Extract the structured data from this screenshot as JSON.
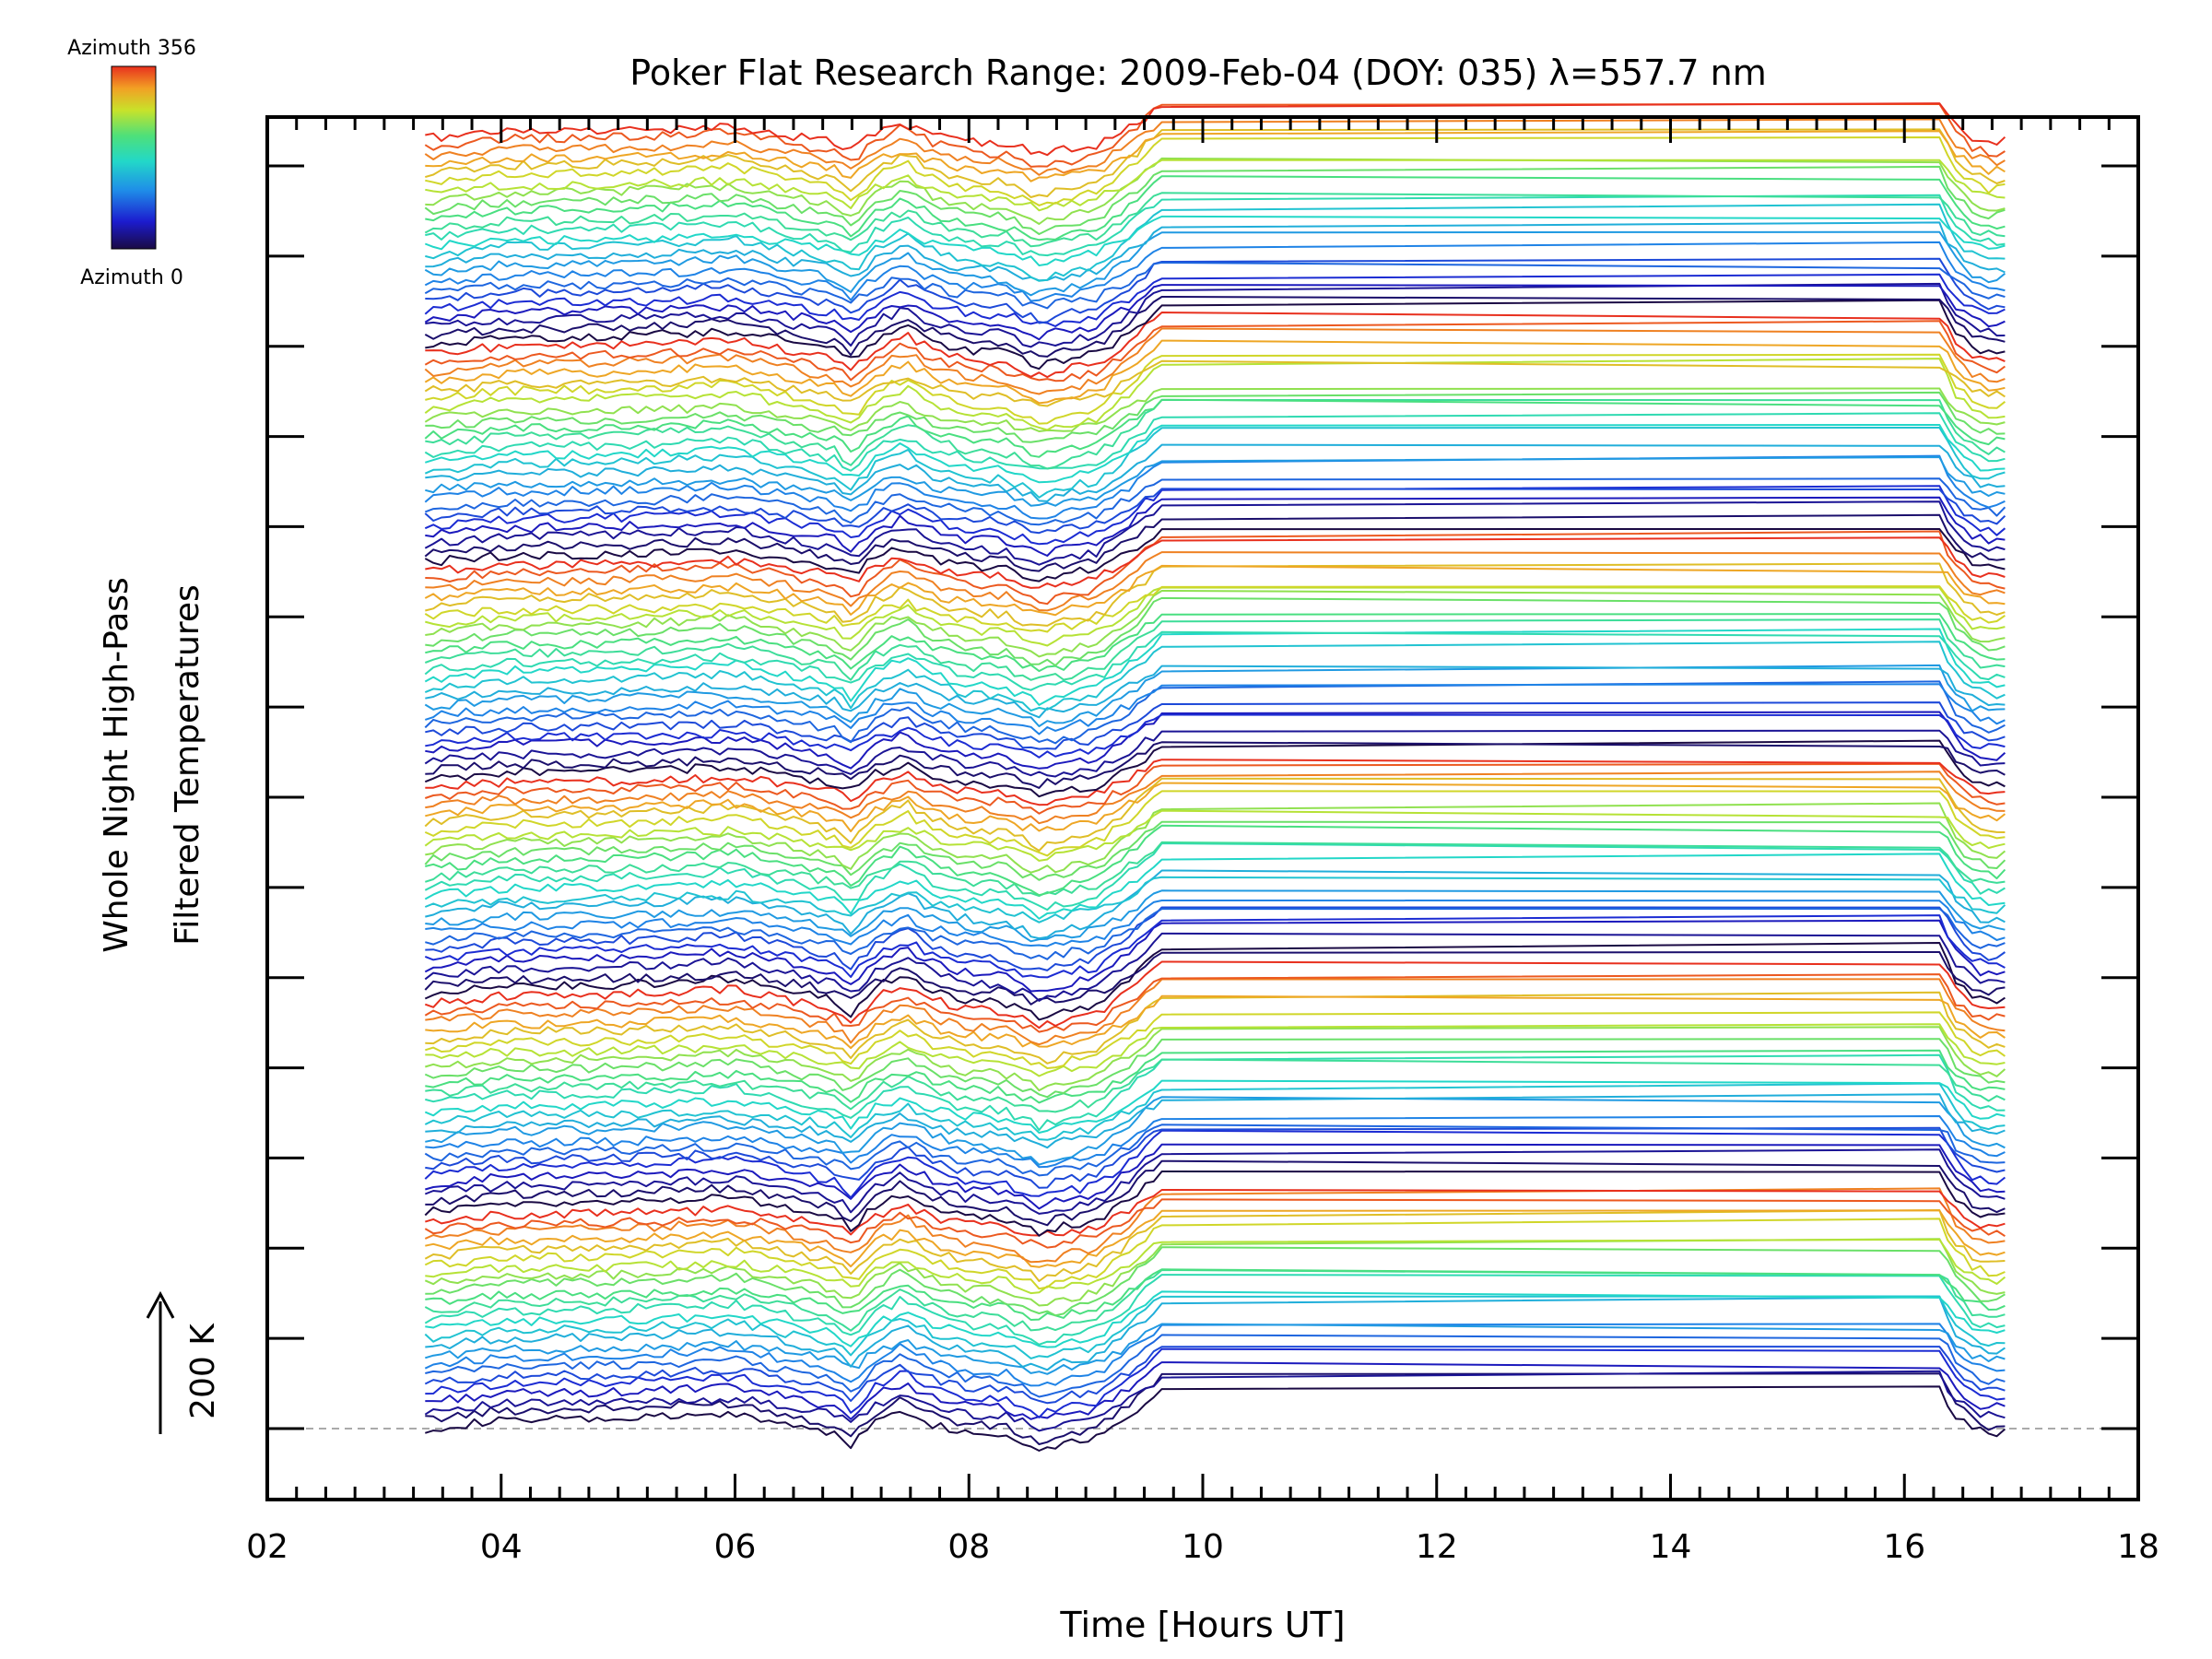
{
  "chart_data": {
    "type": "line",
    "title": "Poker Flat Research Range: 2009-Feb-04 (DOY: 035) λ=557.7 nm",
    "xlabel": "Time [Hours UT]",
    "ylabel": [
      "Whole Night High-Pass",
      "Filtered Temperatures"
    ],
    "scale_label": "200 K",
    "xlim": [
      2,
      18
    ],
    "x_ticks": [
      "02",
      "04",
      "06",
      "08",
      "10",
      "12",
      "14",
      "16",
      "18"
    ],
    "time_range": [
      3.35,
      16.9
    ],
    "gap": [
      9.65,
      16.3
    ],
    "colorbar": {
      "top_label": "Azimuth 356",
      "bottom_label": "Azimuth 0",
      "azimuth_range": [
        0,
        356
      ]
    },
    "series_count": 144,
    "series_spacing_K": 22,
    "profile_knots": {
      "time": [
        3.35,
        4.0,
        5.0,
        6.0,
        6.5,
        6.85,
        7.0,
        7.2,
        7.45,
        7.7,
        8.0,
        8.3,
        8.6,
        8.8,
        9.1,
        9.4,
        9.65,
        16.3,
        16.45,
        16.6,
        16.75,
        16.9
      ],
      "temperature_K": [
        0,
        10,
        12,
        18,
        4,
        -6,
        -20,
        8,
        24,
        5,
        -6,
        -8,
        -25,
        -18,
        -10,
        20,
        50,
        50,
        15,
        -2,
        -8,
        -4
      ]
    },
    "colors": {
      "background": "#ffffff",
      "axes": "#000000",
      "baseline": "#aaaaaa"
    }
  }
}
